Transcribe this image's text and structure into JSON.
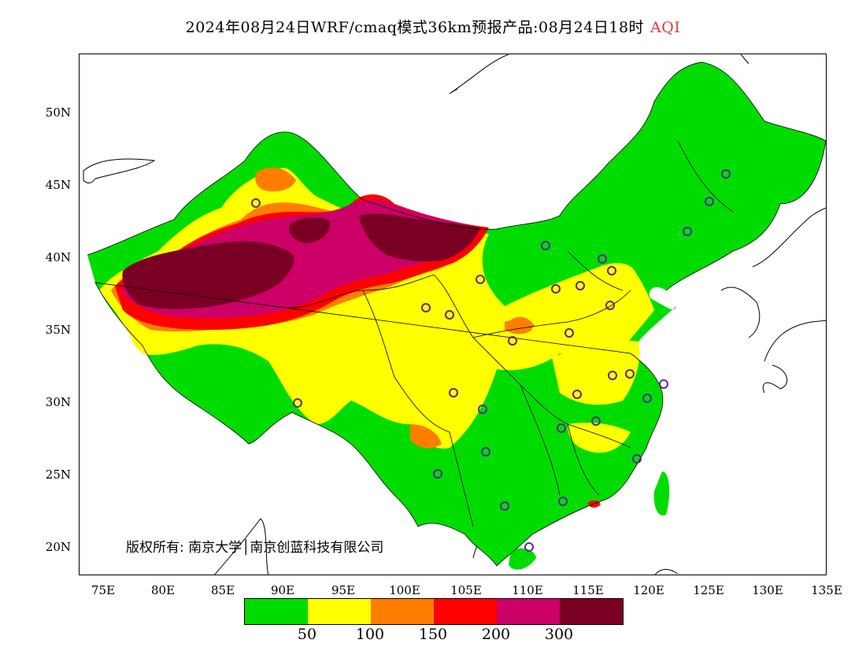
{
  "title": {
    "main": "2024年08月24日WRF/cmaq模式36km预报产品:08月24日18时",
    "variable": "AQI"
  },
  "axes": {
    "latitudes": [
      "50N",
      "45N",
      "40N",
      "35N",
      "30N",
      "25N",
      "20N"
    ],
    "longitudes": [
      "75E",
      "80E",
      "85E",
      "90E",
      "95E",
      "100E",
      "105E",
      "110E",
      "115E",
      "120E",
      "125E",
      "130E",
      "135E"
    ]
  },
  "legend": {
    "colors": [
      "#00dc00",
      "#ffff00",
      "#ff7e00",
      "#ff0000",
      "#cc0066",
      "#7a0023"
    ],
    "ticks": [
      "50",
      "100",
      "150",
      "200",
      "300"
    ]
  },
  "copyright": "版权所有: 南京大学│南京创蓝科技有限公司"
}
